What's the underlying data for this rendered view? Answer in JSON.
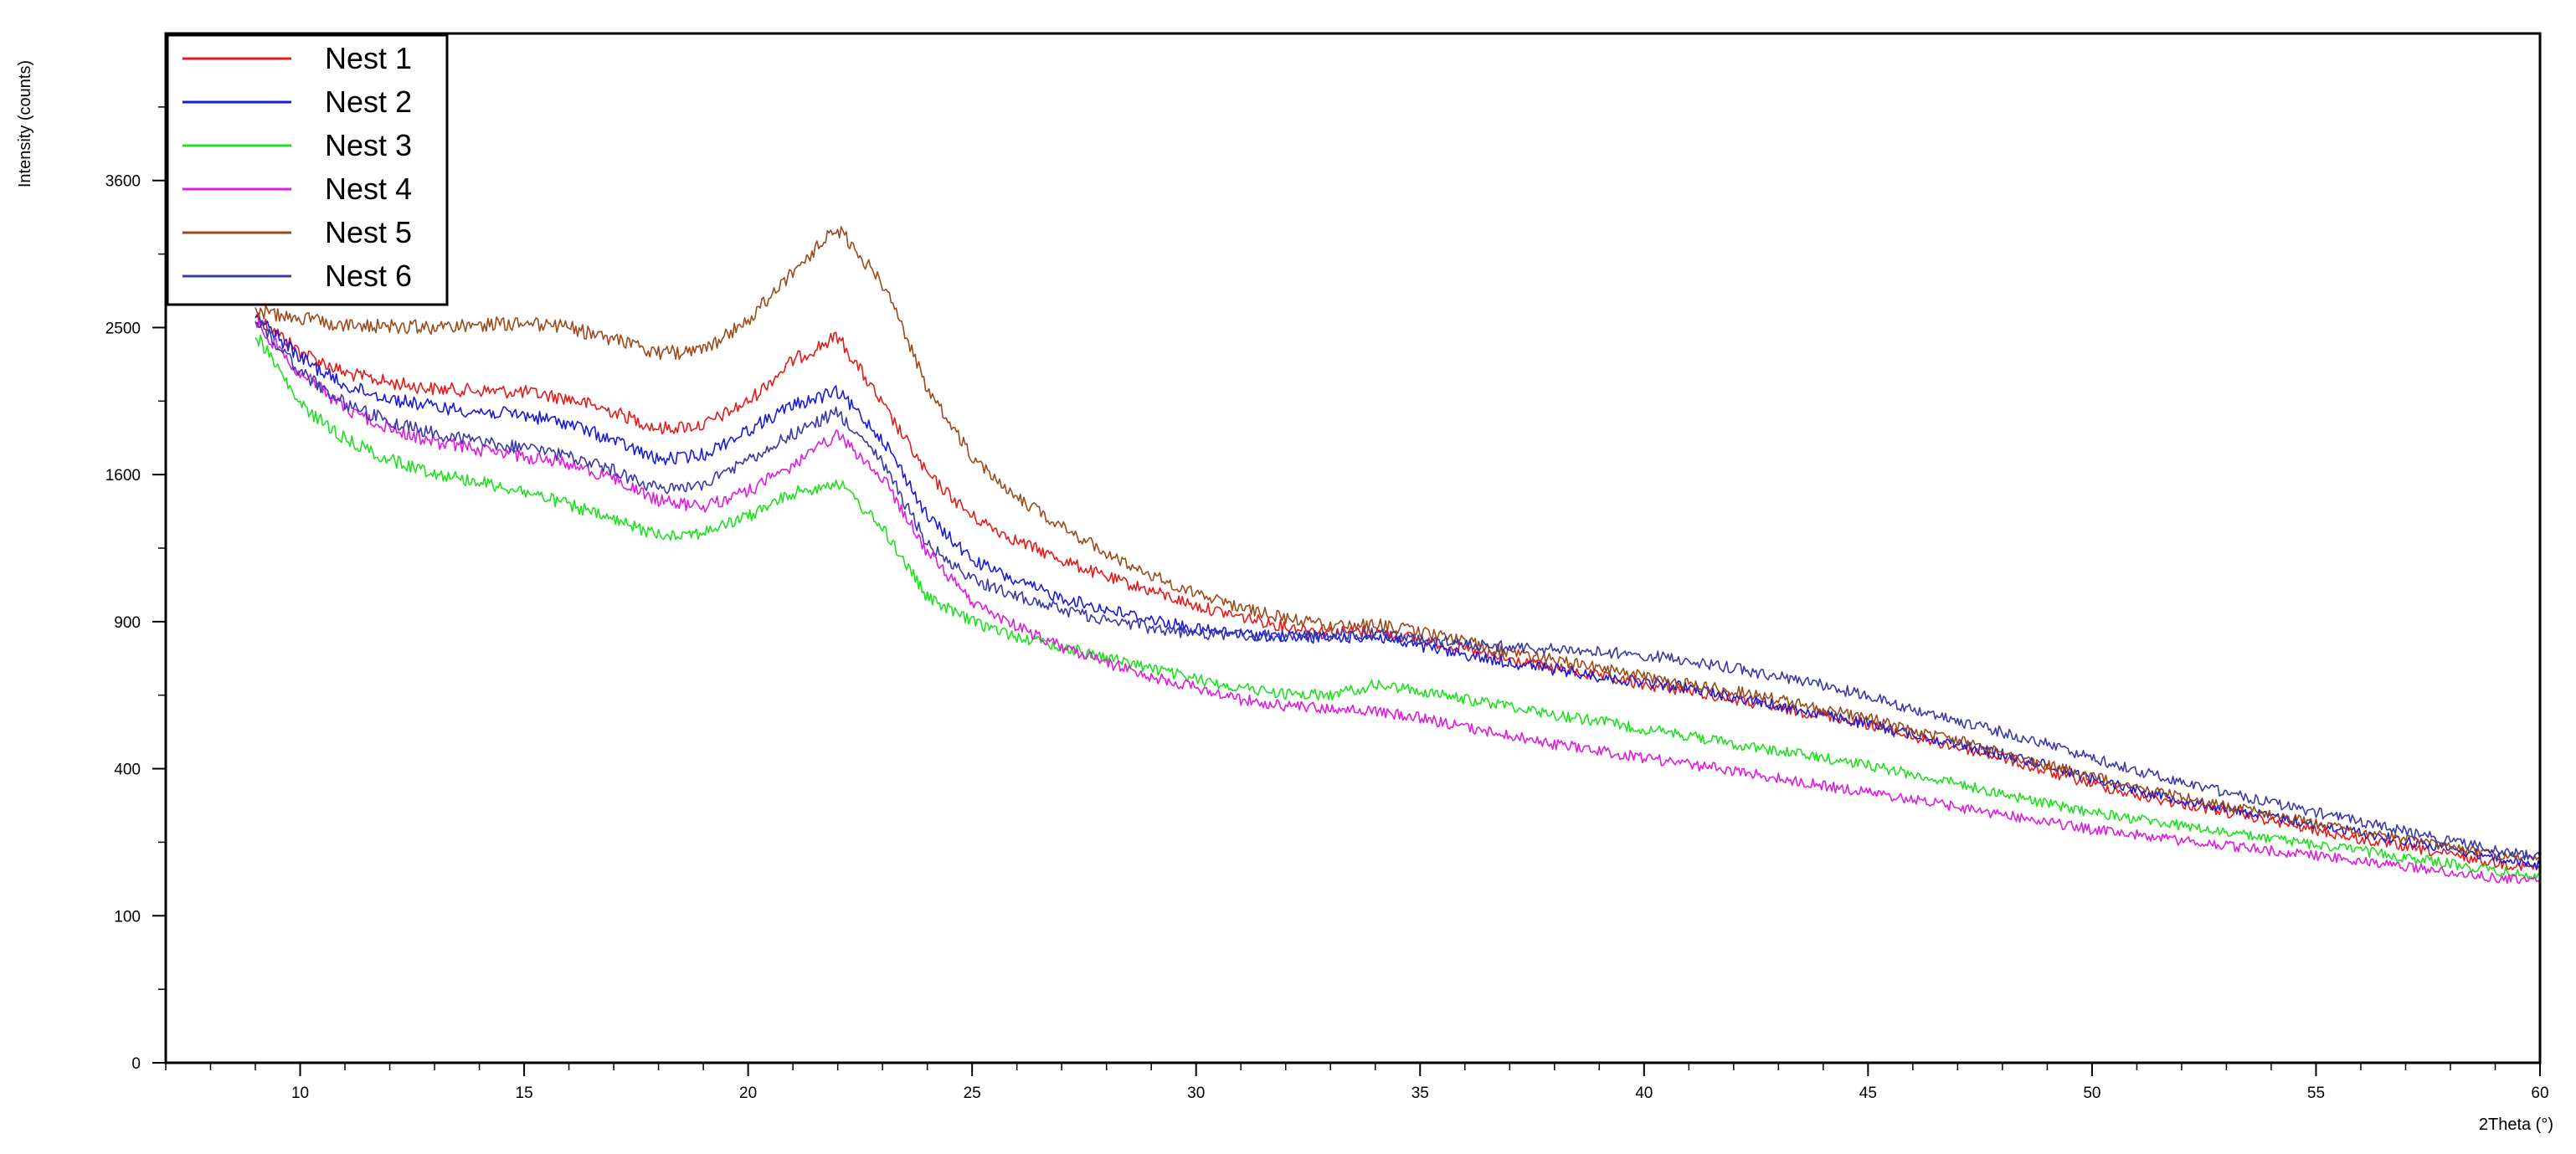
{
  "chart_data": {
    "type": "line",
    "title": "",
    "xlabel": "2Theta (°)",
    "ylabel": "Intensity (counts)",
    "xlim": [
      7,
      60
    ],
    "ylim": [
      0,
      4900
    ],
    "y_scale": "square-root",
    "grid": false,
    "legend_placement": "top-left",
    "x_ticks": [
      10,
      15,
      20,
      25,
      30,
      35,
      40,
      45,
      50,
      55,
      60
    ],
    "x_tick_labels": [
      "10",
      "15",
      "20",
      "25",
      "30",
      "35",
      "40",
      "45",
      "50",
      "55",
      "60"
    ],
    "y_ticks": [
      0,
      100,
      400,
      900,
      1600,
      2500,
      3600
    ],
    "y_tick_labels": [
      "0",
      "100",
      "400",
      "900",
      "1600",
      "2500",
      "3600"
    ],
    "x": [
      9,
      10,
      11,
      12,
      13,
      14,
      15,
      16,
      17,
      18,
      19,
      20,
      21,
      22,
      23,
      24,
      25,
      26,
      27,
      28,
      29,
      30,
      31,
      32,
      33,
      34,
      35,
      36,
      37,
      38,
      39,
      40,
      41,
      42,
      43,
      44,
      45,
      46,
      47,
      48,
      49,
      50,
      51,
      52,
      53,
      54,
      55,
      56,
      57,
      58,
      59,
      60
    ],
    "series": [
      {
        "name": "Nest 1",
        "color": "#e41b1b",
        "values": [
          2580,
          2340,
          2200,
          2140,
          2100,
          2090,
          2080,
          2040,
          1960,
          1860,
          1880,
          2020,
          2280,
          2440,
          2000,
          1600,
          1380,
          1260,
          1170,
          1090,
          1030,
          965,
          920,
          880,
          860,
          860,
          830,
          790,
          750,
          720,
          690,
          660,
          640,
          610,
          580,
          560,
          530,
          490,
          460,
          430,
          390,
          360,
          330,
          310,
          290,
          270,
          250,
          230,
          215,
          200,
          185,
          175
        ]
      },
      {
        "name": "Nest 2",
        "color": "#1b1bd6",
        "values": [
          2580,
          2300,
          2120,
          2040,
          1990,
          1960,
          1940,
          1890,
          1790,
          1680,
          1710,
          1850,
          2000,
          2080,
          1800,
          1380,
          1170,
          1070,
          1000,
          950,
          910,
          870,
          850,
          840,
          835,
          840,
          800,
          770,
          740,
          715,
          690,
          670,
          650,
          620,
          590,
          560,
          530,
          500,
          470,
          440,
          410,
          375,
          345,
          320,
          300,
          280,
          262,
          245,
          228,
          212,
          195,
          180
        ]
      },
      {
        "name": "Nest 3",
        "color": "#1fe01f",
        "values": [
          2460,
          2000,
          1800,
          1680,
          1610,
          1560,
          1510,
          1440,
          1360,
          1290,
          1300,
          1380,
          1500,
          1560,
          1320,
          1000,
          900,
          840,
          800,
          760,
          720,
          680,
          650,
          630,
          625,
          660,
          640,
          610,
          590,
          560,
          540,
          515,
          495,
          470,
          450,
          430,
          410,
          385,
          360,
          335,
          310,
          290,
          275,
          260,
          245,
          232,
          220,
          208,
          195,
          183,
          170,
          160
        ]
      },
      {
        "name": "Nest 4",
        "color": "#e01be0",
        "values": [
          2530,
          2200,
          1980,
          1860,
          1780,
          1740,
          1700,
          1660,
          1580,
          1460,
          1430,
          1510,
          1650,
          1820,
          1580,
          1200,
          980,
          880,
          800,
          740,
          690,
          650,
          610,
          590,
          580,
          570,
          550,
          520,
          495,
          470,
          450,
          430,
          412,
          395,
          375,
          355,
          338,
          320,
          302,
          285,
          268,
          252,
          240,
          228,
          218,
          208,
          198,
          188,
          178,
          168,
          158,
          150
        ]
      },
      {
        "name": "Nest 5",
        "color": "#9b4a1c",
        "values": [
          2620,
          2560,
          2520,
          2510,
          2500,
          2520,
          2530,
          2500,
          2420,
          2330,
          2340,
          2550,
          2900,
          3220,
          2800,
          2100,
          1700,
          1480,
          1330,
          1200,
          1100,
          1020,
          960,
          915,
          880,
          890,
          860,
          820,
          780,
          750,
          720,
          690,
          665,
          640,
          610,
          580,
          550,
          510,
          480,
          445,
          410,
          380,
          352,
          328,
          305,
          285,
          265,
          245,
          230,
          215,
          200,
          188
        ]
      },
      {
        "name": "Nest 6",
        "color": "#3a3aa6",
        "values": [
          2560,
          2200,
          2010,
          1900,
          1830,
          1780,
          1750,
          1700,
          1620,
          1520,
          1540,
          1680,
          1830,
          1960,
          1660,
          1240,
          1080,
          1010,
          950,
          905,
          875,
          850,
          845,
          840,
          845,
          855,
          830,
          810,
          800,
          790,
          780,
          770,
          750,
          720,
          690,
          660,
          620,
          580,
          540,
          505,
          470,
          430,
          395,
          365,
          338,
          312,
          290,
          268,
          248,
          228,
          210,
          195
        ]
      }
    ]
  }
}
